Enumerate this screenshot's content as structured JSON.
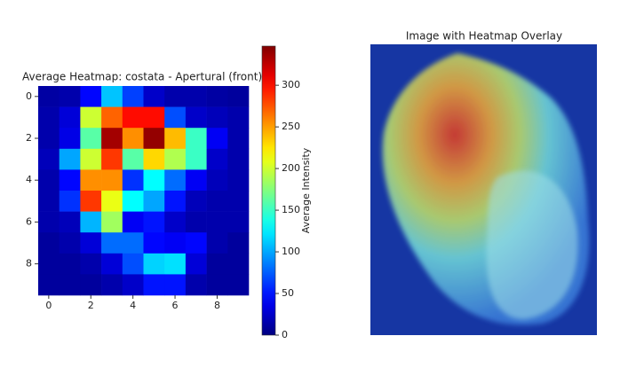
{
  "chart_data": [
    {
      "type": "heatmap",
      "title": "Average Heatmap: costata - Apertural (front)",
      "xticks": [
        0,
        2,
        4,
        6,
        8
      ],
      "yticks": [
        0,
        2,
        4,
        6,
        8
      ],
      "xlim": [
        -0.5,
        9.5
      ],
      "ylim": [
        -0.5,
        9.5
      ],
      "colormap": "jet",
      "values": [
        [
          12,
          15,
          45,
          110,
          65,
          25,
          15,
          15,
          12,
          10
        ],
        [
          15,
          30,
          200,
          270,
          300,
          300,
          70,
          25,
          20,
          15
        ],
        [
          15,
          35,
          160,
          335,
          255,
          340,
          240,
          150,
          40,
          15
        ],
        [
          20,
          100,
          200,
          285,
          160,
          230,
          190,
          150,
          25,
          15
        ],
        [
          15,
          45,
          255,
          255,
          60,
          130,
          80,
          40,
          20,
          15
        ],
        [
          15,
          60,
          285,
          210,
          130,
          100,
          50,
          20,
          15,
          15
        ],
        [
          15,
          20,
          105,
          185,
          40,
          50,
          25,
          15,
          15,
          15
        ],
        [
          10,
          15,
          30,
          80,
          80,
          45,
          40,
          45,
          15,
          10
        ],
        [
          10,
          10,
          15,
          30,
          70,
          115,
          120,
          30,
          10,
          10
        ],
        [
          10,
          10,
          10,
          15,
          25,
          50,
          50,
          15,
          10,
          10
        ]
      ],
      "clim": [
        0,
        347
      ],
      "colorbar_label": "Average Intensity",
      "colorbar_ticks": [
        0,
        50,
        100,
        150,
        200,
        250,
        300
      ]
    },
    {
      "type": "image",
      "title": "Image with Heatmap Overlay"
    }
  ]
}
